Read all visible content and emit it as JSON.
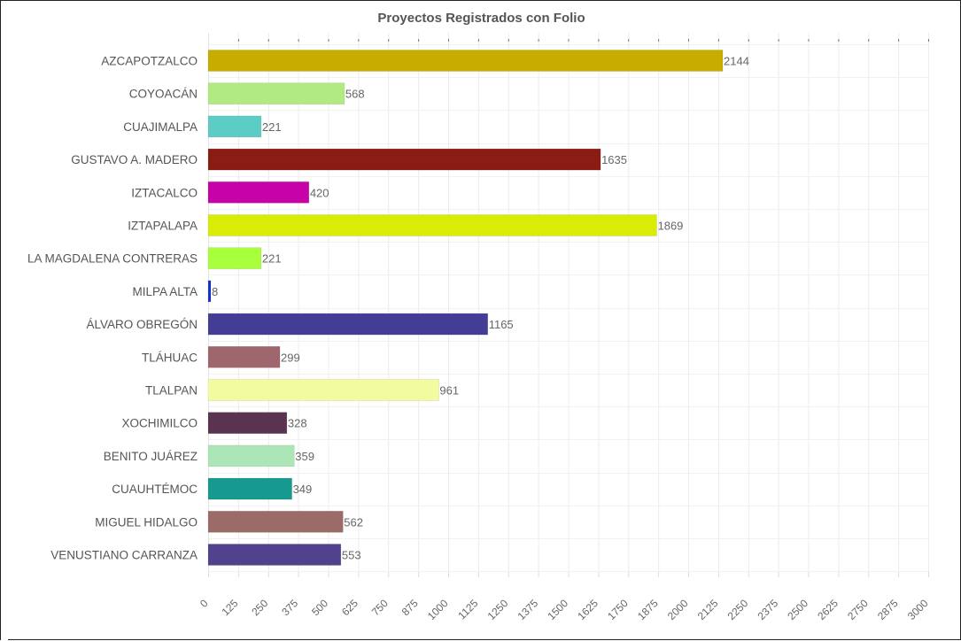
{
  "chart_data": {
    "type": "bar",
    "orientation": "horizontal",
    "title": "Proyectos Registrados con Folio",
    "categories": [
      "AZCAPOTZALCO",
      "COYOACÁN",
      "CUAJIMALPA",
      "GUSTAVO A. MADERO",
      "IZTACALCO",
      "IZTAPALAPA",
      "LA MAGDALENA CONTRERAS",
      "MILPA ALTA",
      "ÁLVARO OBREGÓN",
      "TLÁHUAC",
      "TLALPAN",
      "XOCHIMILCO",
      "BENITO JUÁREZ",
      "CUAUHTÉMOC",
      "MIGUEL HIDALGO",
      "VENUSTIANO CARRANZA"
    ],
    "values": [
      2144,
      568,
      221,
      1635,
      420,
      1869,
      221,
      8,
      1165,
      299,
      961,
      328,
      359,
      349,
      562,
      553
    ],
    "colors": [
      "#c8ac00",
      "#b0ea80",
      "#5ccdc4",
      "#8b1c14",
      "#c602a8",
      "#d8ec06",
      "#a8ff3c",
      "#1a2fd0",
      "#433d96",
      "#a0666e",
      "#f3fba0",
      "#5a3350",
      "#ace6b6",
      "#16998e",
      "#9b6b68",
      "#52428e"
    ],
    "xticks": [
      "0",
      "125",
      "250",
      "375",
      "500",
      "625",
      "750",
      "875",
      "1000",
      "1125",
      "1250",
      "1375",
      "1500",
      "1625",
      "1750",
      "1875",
      "2000",
      "2125",
      "2250",
      "2375",
      "2500",
      "2625",
      "2750",
      "2875",
      "3000"
    ],
    "xlim": [
      0,
      3000
    ],
    "grid": true,
    "data_labels": true,
    "xlabel": "",
    "ylabel": ""
  }
}
